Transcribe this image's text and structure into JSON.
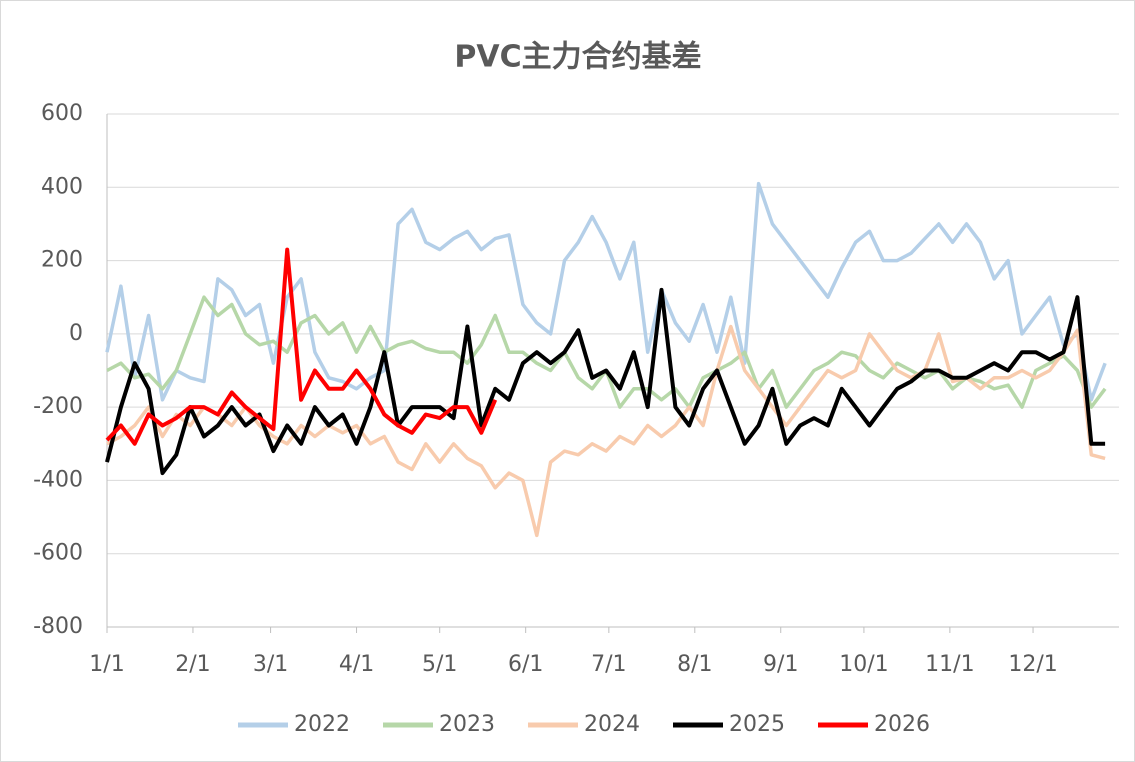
{
  "chart_data": {
    "type": "line",
    "title": "PVC主力合约基差",
    "x": [
      0,
      5,
      10,
      15,
      20,
      25,
      30,
      35,
      40,
      45,
      50,
      55,
      60,
      65,
      70,
      75,
      80,
      85,
      90,
      95,
      100,
      105,
      110,
      115,
      120,
      125,
      130,
      135,
      140,
      145,
      150,
      155,
      160,
      165,
      170,
      175,
      180,
      185,
      190,
      195,
      200,
      205,
      210,
      215,
      220,
      225,
      230,
      235,
      240,
      245,
      250,
      255,
      260,
      265,
      270,
      275,
      280,
      285,
      290,
      295,
      300,
      305,
      310,
      315,
      320,
      325,
      330,
      335,
      340,
      345,
      350,
      355,
      360
    ],
    "xlim": [
      0,
      365
    ],
    "xticks": [
      {
        "value": 0,
        "label": "1/1"
      },
      {
        "value": 31,
        "label": "2/1"
      },
      {
        "value": 59,
        "label": "3/1"
      },
      {
        "value": 90,
        "label": "4/1"
      },
      {
        "value": 120,
        "label": "5/1"
      },
      {
        "value": 151,
        "label": "6/1"
      },
      {
        "value": 181,
        "label": "7/1"
      },
      {
        "value": 212,
        "label": "8/1"
      },
      {
        "value": 243,
        "label": "9/1"
      },
      {
        "value": 273,
        "label": "10/1"
      },
      {
        "value": 304,
        "label": "11/1"
      },
      {
        "value": 334,
        "label": "12/1"
      }
    ],
    "ylim": [
      -800,
      600
    ],
    "yticks": [
      -800,
      -600,
      -400,
      -200,
      0,
      200,
      400,
      600
    ],
    "grid": true,
    "legend": "bottom",
    "series": [
      {
        "name": "2022",
        "color": "#b4cfe8",
        "values": [
          -50,
          130,
          -120,
          50,
          -180,
          -100,
          -120,
          -130,
          150,
          120,
          50,
          80,
          -80,
          100,
          150,
          -50,
          -120,
          -130,
          -150,
          -120,
          -100,
          300,
          340,
          250,
          230,
          260,
          280,
          230,
          260,
          270,
          80,
          30,
          0,
          200,
          250,
          320,
          250,
          150,
          250,
          -50,
          120,
          30,
          -20,
          80,
          -50,
          100,
          -80,
          410,
          300,
          250,
          200,
          150,
          100,
          180,
          250,
          280,
          200,
          200,
          220,
          260,
          300,
          250,
          300,
          250,
          150,
          200,
          0,
          50,
          100,
          -30,
          0,
          -180,
          -80
        ]
      },
      {
        "name": "2023",
        "color": "#b6d7a8",
        "values": [
          -100,
          -80,
          -120,
          -110,
          -150,
          -100,
          0,
          100,
          50,
          80,
          0,
          -30,
          -20,
          -50,
          30,
          50,
          0,
          30,
          -50,
          20,
          -50,
          -30,
          -20,
          -40,
          -50,
          -50,
          -80,
          -30,
          50,
          -50,
          -50,
          -80,
          -100,
          -50,
          -120,
          -150,
          -100,
          -200,
          -150,
          -150,
          -180,
          -150,
          -200,
          -120,
          -100,
          -80,
          -50,
          -150,
          -100,
          -200,
          -150,
          -100,
          -80,
          -50,
          -60,
          -100,
          -120,
          -80,
          -100,
          -120,
          -100,
          -150,
          -120,
          -130,
          -150,
          -140,
          -200,
          -100,
          -80,
          -60,
          -100,
          -200,
          -150
        ]
      },
      {
        "name": "2024",
        "color": "#f8cbad",
        "values": [
          -300,
          -280,
          -250,
          -200,
          -280,
          -220,
          -250,
          -200,
          -220,
          -250,
          -200,
          -250,
          -280,
          -300,
          -250,
          -280,
          -250,
          -270,
          -250,
          -300,
          -280,
          -350,
          -370,
          -300,
          -350,
          -300,
          -340,
          -360,
          -420,
          -380,
          -400,
          -550,
          -350,
          -320,
          -330,
          -300,
          -320,
          -280,
          -300,
          -250,
          -280,
          -250,
          -200,
          -250,
          -100,
          20,
          -100,
          -150,
          -200,
          -250,
          -200,
          -150,
          -100,
          -120,
          -100,
          0,
          -50,
          -100,
          -120,
          -100,
          0,
          -130,
          -120,
          -150,
          -120,
          -120,
          -100,
          -120,
          -100,
          -50,
          10,
          -330,
          -340
        ]
      },
      {
        "name": "2025",
        "color": "#000000",
        "values": [
          -350,
          -200,
          -80,
          -150,
          -380,
          -330,
          -200,
          -280,
          -250,
          -200,
          -250,
          -220,
          -320,
          -250,
          -300,
          -200,
          -250,
          -220,
          -300,
          -200,
          -50,
          -250,
          -200,
          -200,
          -200,
          -230,
          20,
          -250,
          -150,
          -180,
          -80,
          -50,
          -80,
          -50,
          10,
          -120,
          -100,
          -150,
          -50,
          -200,
          120,
          -200,
          -250,
          -150,
          -100,
          -200,
          -300,
          -250,
          -150,
          -300,
          -250,
          -230,
          -250,
          -150,
          -200,
          -250,
          -200,
          -150,
          -130,
          -100,
          -100,
          -120,
          -120,
          -100,
          -80,
          -100,
          -50,
          -50,
          -70,
          -50,
          100,
          -300,
          -300
        ]
      },
      {
        "name": "2026",
        "color": "#ff0000",
        "values": [
          -290,
          -250,
          -300,
          -220,
          -250,
          -230,
          -200,
          -200,
          -220,
          -160,
          -200,
          -230,
          -260,
          230,
          -180,
          -100,
          -150,
          -150,
          -100,
          -150,
          -220,
          -250,
          -270,
          -220,
          -230,
          -200,
          -200,
          -270,
          -180,
          null,
          null,
          null,
          null,
          null,
          null,
          null,
          null,
          null,
          null,
          null,
          null,
          null,
          null,
          null,
          null,
          null,
          null,
          null,
          null,
          null,
          null,
          null,
          null,
          null,
          null,
          null,
          null,
          null,
          null,
          null,
          null,
          null,
          null,
          null,
          null,
          null,
          null,
          null,
          null,
          null,
          null,
          null,
          null
        ]
      }
    ]
  }
}
